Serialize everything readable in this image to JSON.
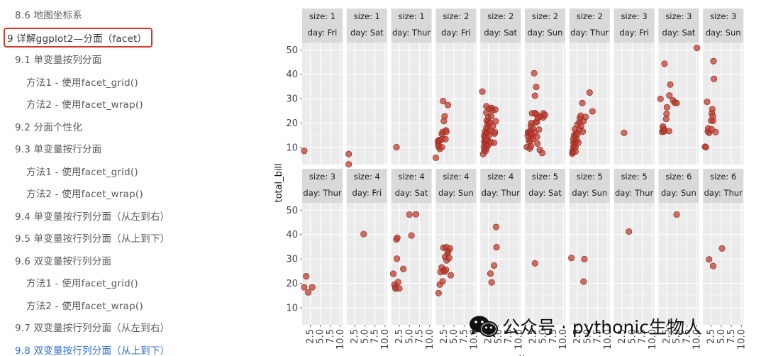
{
  "toc": {
    "items": [
      {
        "label": "8.6 地图坐标系",
        "indent": 1,
        "state": "normal"
      },
      {
        "label": "9 详解ggplot2—分面（facet）",
        "indent": 0,
        "state": "boxed"
      },
      {
        "label": "9.1 单变量按列分面",
        "indent": 1,
        "state": "normal"
      },
      {
        "label": "方法1 - 使用facet_grid()",
        "indent": 2,
        "state": "normal"
      },
      {
        "label": "方法2 - 使用facet_wrap()",
        "indent": 2,
        "state": "normal"
      },
      {
        "label": "9.2 分面个性化",
        "indent": 1,
        "state": "normal"
      },
      {
        "label": "9.3 单变量按行分面",
        "indent": 1,
        "state": "normal"
      },
      {
        "label": "方法1 - 使用facet_grid()",
        "indent": 2,
        "state": "normal"
      },
      {
        "label": "方法2 - 使用facet_wrap()",
        "indent": 2,
        "state": "normal"
      },
      {
        "label": "9.4 单变量按行列分面（从左到右）",
        "indent": 1,
        "state": "normal"
      },
      {
        "label": "9.5 单变量按行列分面（从上到下）",
        "indent": 1,
        "state": "normal"
      },
      {
        "label": "9.6 双变量按行列分面",
        "indent": 1,
        "state": "normal"
      },
      {
        "label": "方法1 - 使用facet_grid()",
        "indent": 2,
        "state": "normal"
      },
      {
        "label": "方法2 - 使用facet_wrap()",
        "indent": 2,
        "state": "normal"
      },
      {
        "label": "9.7 双变量按行列分面（从左到右）",
        "indent": 1,
        "state": "normal"
      },
      {
        "label": "9.8 双变量按行列分面（从上到下）",
        "indent": 1,
        "state": "active"
      }
    ]
  },
  "watermark": {
    "text": "公众号 · pythonic生物人",
    "icon": "wechat-icon"
  },
  "colors": {
    "point": "#c0392b",
    "strip": "#d9d9d9",
    "panel": "#ebebeb",
    "active_link": "#2f6fd6",
    "highlight_box": "#d23c2e"
  },
  "chart_data": {
    "type": "scatter",
    "title": "",
    "xlabel": "tip",
    "ylabel": "total_bill",
    "xlim": [
      0.5,
      10.5
    ],
    "ylim": [
      3,
      53
    ],
    "x_ticks": [
      "2.5",
      "5.0",
      "7.5",
      "10.0"
    ],
    "y_ticks": [
      "10",
      "20",
      "30",
      "40",
      "50"
    ],
    "grid": true,
    "facet_rows": 2,
    "facet_cols": 10,
    "facets": [
      {
        "size": "size: 1",
        "day": "day: Fri",
        "points": [
          [
            1.0,
            8.6
          ]
        ]
      },
      {
        "size": "size: 1",
        "day": "day: Sat",
        "points": [
          [
            1.0,
            7.3
          ],
          [
            1.0,
            3.1
          ]
        ]
      },
      {
        "size": "size: 1",
        "day": "day: Thur",
        "points": [
          [
            1.8,
            10.1
          ]
        ]
      },
      {
        "size": "size: 2",
        "day": "day: Fri",
        "points": [
          [
            0.5,
            5.8
          ],
          [
            1.0,
            12.5
          ],
          [
            1.1,
            11.2
          ],
          [
            1.2,
            10.3
          ],
          [
            1.3,
            13.0
          ],
          [
            1.5,
            12.8
          ],
          [
            1.5,
            9.4
          ],
          [
            2.0,
            10.1
          ],
          [
            2.0,
            15.5
          ],
          [
            2.1,
            13.4
          ],
          [
            2.2,
            16.3
          ],
          [
            2.3,
            29.0
          ],
          [
            2.5,
            20.8
          ],
          [
            2.7,
            22.8
          ],
          [
            2.9,
            13.4
          ],
          [
            3.0,
            17.0
          ],
          [
            3.1,
            16.4
          ],
          [
            3.5,
            27.4
          ]
        ]
      },
      {
        "size": "size: 2",
        "day": "day: Sat",
        "points": [
          [
            1.0,
            32.9
          ],
          [
            1.2,
            7.3
          ],
          [
            1.4,
            10.3
          ],
          [
            1.5,
            14.5
          ],
          [
            1.5,
            9.0
          ],
          [
            1.5,
            12.4
          ],
          [
            1.6,
            15.1
          ],
          [
            1.7,
            12.0
          ],
          [
            1.7,
            16.5
          ],
          [
            1.8,
            8.5
          ],
          [
            1.8,
            13.5
          ],
          [
            1.9,
            11.0
          ],
          [
            2.0,
            12.7
          ],
          [
            2.0,
            9.6
          ],
          [
            2.0,
            24.3
          ],
          [
            2.0,
            26.9
          ],
          [
            2.0,
            18.0
          ],
          [
            2.0,
            15.8
          ],
          [
            2.0,
            14.0
          ],
          [
            2.1,
            21.0
          ],
          [
            2.2,
            10.6
          ],
          [
            2.2,
            16.1
          ],
          [
            2.3,
            13.0
          ],
          [
            2.3,
            19.5
          ],
          [
            2.5,
            20.4
          ],
          [
            2.5,
            17.6
          ],
          [
            2.5,
            22.4
          ],
          [
            2.6,
            11.2
          ],
          [
            2.7,
            15.0
          ],
          [
            2.7,
            25.9
          ],
          [
            3.0,
            20.1
          ],
          [
            3.0,
            16.9
          ],
          [
            3.1,
            12.2
          ],
          [
            3.2,
            22.8
          ],
          [
            3.3,
            26.2
          ],
          [
            3.5,
            25.2
          ],
          [
            3.6,
            18.8
          ],
          [
            3.9,
            11.9
          ],
          [
            4.0,
            15.7
          ],
          [
            4.1,
            16.3
          ],
          [
            4.2,
            25.5
          ],
          [
            4.3,
            20.7
          ]
        ]
      },
      {
        "size": "size: 2",
        "day": "day: Sun",
        "points": [
          [
            1.0,
            10.2
          ],
          [
            1.2,
            14.8
          ],
          [
            1.3,
            16.3
          ],
          [
            1.5,
            15.9
          ],
          [
            1.5,
            13.0
          ],
          [
            1.7,
            9.6
          ],
          [
            1.8,
            12.4
          ],
          [
            1.9,
            16.6
          ],
          [
            2.0,
            14.1
          ],
          [
            2.0,
            17.0
          ],
          [
            2.0,
            10.5
          ],
          [
            2.0,
            18.9
          ],
          [
            2.1,
            20.0
          ],
          [
            2.2,
            15.4
          ],
          [
            2.3,
            24.0
          ],
          [
            2.5,
            17.8
          ],
          [
            2.5,
            13.5
          ],
          [
            2.8,
            40.4
          ],
          [
            3.0,
            24.1
          ],
          [
            3.0,
            16.0
          ],
          [
            3.0,
            31.2
          ],
          [
            3.2,
            20.3
          ],
          [
            3.3,
            34.8
          ],
          [
            3.4,
            23.5
          ],
          [
            3.5,
            14.4
          ],
          [
            3.5,
            20.5
          ],
          [
            3.6,
            11.6
          ],
          [
            3.7,
            22.1
          ],
          [
            4.0,
            17.3
          ],
          [
            4.2,
            9.0
          ],
          [
            4.4,
            22.7
          ],
          [
            4.8,
            7.7
          ],
          [
            5.0,
            22.3
          ],
          [
            5.1,
            24.0
          ],
          [
            5.5,
            23.3
          ]
        ]
      },
      {
        "size": "size: 2",
        "day": "day: Thur",
        "points": [
          [
            1.2,
            7.5
          ],
          [
            1.3,
            8.5
          ],
          [
            1.4,
            8.0
          ],
          [
            1.5,
            12.0
          ],
          [
            1.5,
            10.3
          ],
          [
            1.5,
            13.5
          ],
          [
            1.6,
            9.6
          ],
          [
            1.7,
            15.0
          ],
          [
            1.8,
            11.4
          ],
          [
            1.9,
            17.5
          ],
          [
            2.0,
            12.4
          ],
          [
            2.0,
            10.1
          ],
          [
            2.0,
            14.5
          ],
          [
            2.0,
            8.3
          ],
          [
            2.2,
            16.0
          ],
          [
            2.3,
            13.1
          ],
          [
            2.5,
            19.4
          ],
          [
            2.5,
            15.5
          ],
          [
            2.7,
            11.9
          ],
          [
            3.0,
            20.3
          ],
          [
            3.0,
            17.3
          ],
          [
            3.1,
            22.0
          ],
          [
            3.3,
            23.0
          ],
          [
            3.4,
            18.8
          ],
          [
            3.7,
            28.2
          ],
          [
            3.8,
            16.5
          ],
          [
            4.0,
            20.8
          ],
          [
            4.5,
            22.5
          ],
          [
            5.5,
            32.5
          ],
          [
            6.2,
            24.8
          ]
        ]
      },
      {
        "size": "size: 3",
        "day": "day: Fri",
        "points": [
          [
            3.0,
            16.0
          ]
        ]
      },
      {
        "size": "size: 3",
        "day": "day: Sat",
        "points": [
          [
            1.0,
            29.9
          ],
          [
            1.4,
            16.4
          ],
          [
            1.6,
            18.6
          ],
          [
            1.7,
            17.8
          ],
          [
            1.8,
            16.5
          ],
          [
            2.0,
            44.3
          ],
          [
            2.0,
            17.0
          ],
          [
            2.4,
            21.7
          ],
          [
            2.5,
            23.8
          ],
          [
            2.6,
            26.5
          ],
          [
            3.1,
            16.7
          ],
          [
            3.2,
            31.3
          ],
          [
            3.4,
            35.8
          ],
          [
            4.1,
            29.3
          ],
          [
            4.5,
            28.4
          ],
          [
            5.0,
            28.2
          ],
          [
            10.0,
            50.8
          ]
        ]
      },
      {
        "size": "size: 3",
        "day": "day: Sun",
        "points": [
          [
            1.0,
            10.3
          ],
          [
            1.2,
            10.1
          ],
          [
            1.5,
            28.7
          ],
          [
            1.7,
            16.5
          ],
          [
            1.8,
            17.8
          ],
          [
            2.0,
            16.0
          ],
          [
            2.5,
            21.0
          ],
          [
            2.6,
            17.5
          ],
          [
            2.7,
            24.0
          ],
          [
            2.8,
            25.7
          ],
          [
            2.9,
            22.8
          ],
          [
            3.0,
            20.9
          ],
          [
            3.1,
            45.4
          ],
          [
            3.2,
            38.1
          ],
          [
            3.6,
            16.3
          ]
        ]
      },
      {
        "size": "size: 3",
        "day": "day: Thur",
        "points": [
          [
            1.0,
            18.4
          ],
          [
            1.5,
            22.9
          ],
          [
            2.0,
            16.3
          ],
          [
            3.0,
            18.4
          ]
        ]
      },
      {
        "size": "size: 4",
        "day": "day: Fri",
        "points": [
          [
            4.7,
            40.2
          ]
        ]
      },
      {
        "size": "size: 4",
        "day": "day: Sat",
        "points": [
          [
            1.0,
            23.9
          ],
          [
            1.3,
            19.5
          ],
          [
            1.5,
            18.4
          ],
          [
            1.6,
            17.8
          ],
          [
            1.8,
            38.0
          ],
          [
            1.9,
            30.1
          ],
          [
            2.0,
            38.7
          ],
          [
            2.2,
            20.5
          ],
          [
            2.5,
            17.9
          ],
          [
            3.5,
            25.9
          ],
          [
            5.0,
            48.2
          ],
          [
            5.5,
            39.6
          ],
          [
            6.6,
            48.3
          ]
        ]
      },
      {
        "size": "size: 4",
        "day": "day: Sun",
        "points": [
          [
            1.2,
            16.0
          ],
          [
            1.5,
            19.5
          ],
          [
            1.7,
            24.6
          ],
          [
            2.0,
            26.5
          ],
          [
            2.2,
            20.8
          ],
          [
            2.4,
            34.6
          ],
          [
            2.5,
            25.3
          ],
          [
            2.7,
            24.8
          ],
          [
            2.8,
            30.8
          ],
          [
            3.0,
            25.6
          ],
          [
            3.1,
            34.8
          ],
          [
            3.2,
            29.4
          ],
          [
            3.4,
            32.3
          ],
          [
            3.6,
            33.2
          ],
          [
            3.8,
            30.4
          ],
          [
            4.0,
            34.3
          ],
          [
            4.2,
            23.3
          ]
        ]
      },
      {
        "size": "size: 4",
        "day": "day: Thur",
        "points": [
          [
            3.0,
            24.0
          ],
          [
            3.3,
            20.4
          ],
          [
            3.9,
            27.3
          ],
          [
            4.4,
            43.1
          ],
          [
            4.5,
            34.8
          ]
        ]
      },
      {
        "size": "size: 5",
        "day": "day: Sat",
        "points": [
          [
            3.0,
            28.2
          ]
        ]
      },
      {
        "size": "size: 5",
        "day": "day: Sun",
        "points": [
          [
            1.0,
            30.4
          ],
          [
            4.0,
            20.7
          ],
          [
            4.2,
            29.9
          ]
        ]
      },
      {
        "size": "size: 5",
        "day": "day: Thur",
        "points": [
          [
            4.2,
            41.2
          ]
        ]
      },
      {
        "size": "size: 6",
        "day": "day: Sun",
        "points": [
          [
            5.0,
            48.2
          ]
        ]
      },
      {
        "size": "size: 6",
        "day": "day: Thur",
        "points": [
          [
            2.0,
            29.8
          ],
          [
            3.0,
            27.1
          ],
          [
            5.2,
            34.3
          ]
        ]
      }
    ]
  }
}
